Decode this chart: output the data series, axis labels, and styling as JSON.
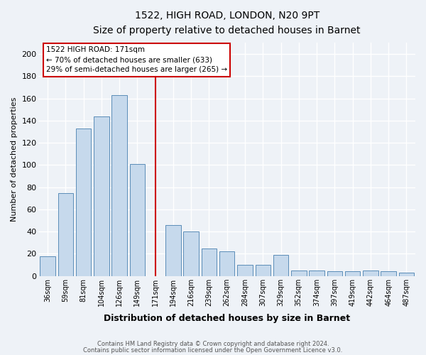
{
  "title_line1": "1522, HIGH ROAD, LONDON, N20 9PT",
  "title_line2": "Size of property relative to detached houses in Barnet",
  "xlabel": "Distribution of detached houses by size in Barnet",
  "ylabel": "Number of detached properties",
  "categories": [
    "36sqm",
    "59sqm",
    "81sqm",
    "104sqm",
    "126sqm",
    "149sqm",
    "171sqm",
    "194sqm",
    "216sqm",
    "239sqm",
    "262sqm",
    "284sqm",
    "307sqm",
    "329sqm",
    "352sqm",
    "374sqm",
    "397sqm",
    "419sqm",
    "442sqm",
    "464sqm",
    "487sqm"
  ],
  "values": [
    18,
    75,
    133,
    144,
    163,
    101,
    0,
    46,
    40,
    25,
    22,
    10,
    10,
    19,
    5,
    5,
    4,
    4,
    5,
    4,
    3
  ],
  "bar_color": "#c6d9ec",
  "bar_edge_color": "#5b8db8",
  "highlight_index": 6,
  "highlight_line_color": "#cc0000",
  "ylim": [
    0,
    210
  ],
  "yticks": [
    0,
    20,
    40,
    60,
    80,
    100,
    120,
    140,
    160,
    180,
    200
  ],
  "annotation_text": "1522 HIGH ROAD: 171sqm\n← 70% of detached houses are smaller (633)\n29% of semi-detached houses are larger (265) →",
  "annotation_box_color": "#ffffff",
  "annotation_box_edge_color": "#cc0000",
  "footer_line1": "Contains HM Land Registry data © Crown copyright and database right 2024.",
  "footer_line2": "Contains public sector information licensed under the Open Government Licence v3.0.",
  "background_color": "#eef2f7",
  "grid_color": "#ffffff",
  "plot_bg_color": "#eef2f7"
}
